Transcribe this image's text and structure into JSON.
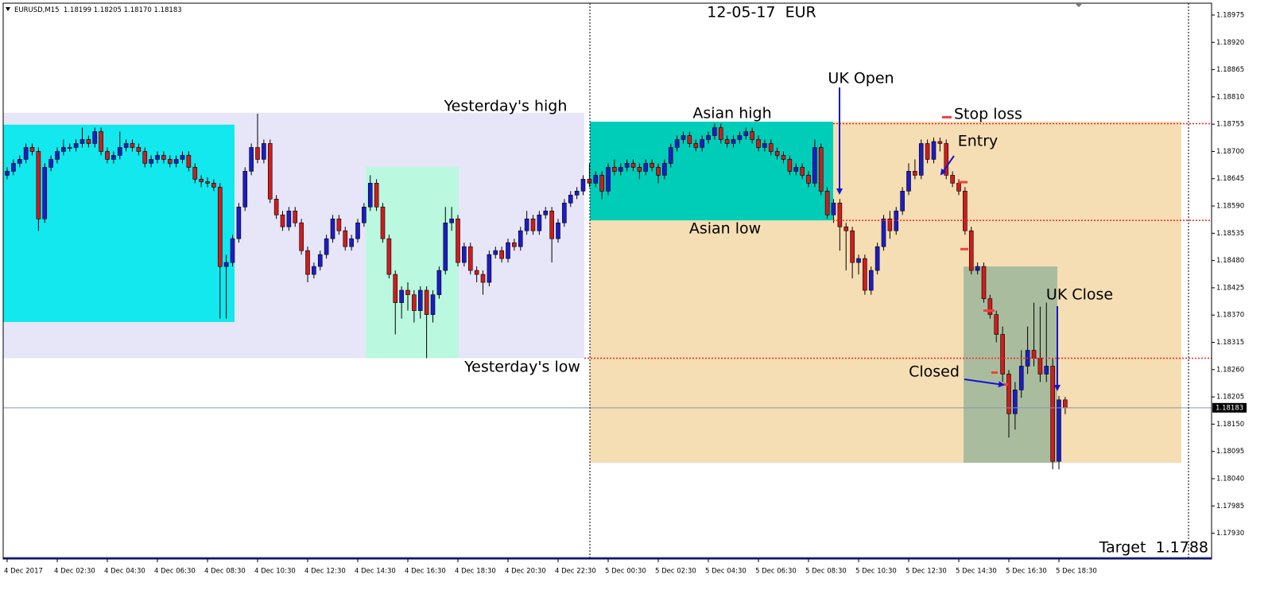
{
  "chart_data": {
    "type": "candlestick",
    "symbol": "EURUSD,M15",
    "last_bar_labels": {
      "open": "1.18199",
      "high": "1.18205",
      "low": "1.18170",
      "close": "1.18183"
    },
    "title": "12-05-17  EUR",
    "annotations": [
      "Yesterday's high",
      "Yesterday's low",
      "Asian high",
      "Asian low",
      "UK Open",
      "Stop loss",
      "Entry",
      "Closed",
      "UK Close"
    ],
    "target": {
      "value": 1.1788,
      "label": "Target  1.1788"
    },
    "up_color": "#1c1cc8",
    "down_color": "#d01c1c",
    "wick_color": "#000000",
    "ylim": [
      1.17878,
      1.18999
    ],
    "yticks": [
      1.18975,
      {
        "value": 1.1892,
        "label": "1.18920"
      },
      1.18865,
      {
        "value": 1.1881,
        "label": "1.18810"
      },
      1.18755,
      {
        "value": 1.187,
        "label": "1.18700"
      },
      1.18645,
      {
        "value": 1.1859,
        "label": "1.18590"
      },
      1.18535,
      {
        "value": 1.1848,
        "label": "1.18480"
      },
      1.18425,
      {
        "value": 1.1837,
        "label": "1.18370"
      },
      1.18315,
      {
        "value": 1.1826,
        "label": "1.18260"
      },
      1.18205,
      {
        "value": 1.1815,
        "label": "1.18150"
      },
      1.18095,
      {
        "value": 1.1804,
        "label": "1.18040"
      },
      1.17985,
      {
        "value": 1.1793,
        "label": "1.17930"
      }
    ],
    "zones": [
      {
        "high": 1.18778,
        "low": 1.18283,
        "color": "#e6e6f8"
      },
      {
        "high": 1.18754,
        "low": 1.18356,
        "color": "#12e8ee"
      },
      {
        "high": 1.18669,
        "low": 1.18283,
        "color": "#baf8e0"
      },
      {
        "high": 1.1876,
        "low": 1.18072,
        "color": "#f5deb3"
      },
      {
        "high": 1.1876,
        "low": 1.18561,
        "color": "#00cdb8"
      },
      {
        "high": 1.18468,
        "low": 1.18072,
        "color": "#a9bd9e"
      }
    ],
    "levels": [
      1.18756,
      1.18561,
      1.18283
    ],
    "level_color": "#ff2020",
    "orders": [
      1.18769,
      1.18638,
      1.18503,
      1.18379,
      1.18254,
      1.1823
    ],
    "order_color": "#f04040",
    "categories": [
      "4 Dec 2017",
      null,
      null,
      null,
      null,
      null,
      null,
      null,
      "4 Dec 02:30",
      null,
      null,
      null,
      null,
      null,
      null,
      null,
      "4 Dec 04:30",
      null,
      null,
      null,
      null,
      null,
      null,
      null,
      "4 Dec 06:30",
      null,
      null,
      null,
      null,
      null,
      null,
      null,
      "4 Dec 08:30",
      null,
      null,
      null,
      null,
      null,
      null,
      null,
      "4 Dec 10:30",
      null,
      null,
      null,
      null,
      null,
      null,
      null,
      "4 Dec 12:30",
      null,
      null,
      null,
      null,
      null,
      null,
      null,
      "4 Dec 14:30",
      null,
      null,
      null,
      null,
      null,
      null,
      null,
      "4 Dec 16:30",
      null,
      null,
      null,
      null,
      null,
      null,
      null,
      "4 Dec 18:30",
      null,
      null,
      null,
      null,
      null,
      null,
      null,
      "4 Dec 20:30",
      null,
      null,
      null,
      null,
      null,
      null,
      null,
      "4 Dec 22:30",
      null,
      null,
      null,
      null,
      null,
      null,
      null,
      "5 Dec 00:30",
      null,
      null,
      null,
      null,
      null,
      null,
      null,
      "5 Dec 02:30",
      null,
      null,
      null,
      null,
      null,
      null,
      null,
      "5 Dec 04:30",
      null,
      null,
      null,
      null,
      null,
      null,
      null,
      "5 Dec 06:30",
      null,
      null,
      null,
      null,
      null,
      null,
      null,
      "5 Dec 08:30",
      null,
      null,
      null,
      null,
      null,
      null,
      null,
      "5 Dec 10:30",
      null,
      null,
      null,
      null,
      null,
      null,
      null,
      "5 Dec 12:30",
      null,
      null,
      null,
      null,
      null,
      null,
      null,
      "5 Dec 14:30",
      null,
      null,
      null,
      null,
      null,
      null,
      null,
      "5 Dec 16:30",
      null,
      null,
      null,
      null,
      null,
      null,
      null,
      "5 Dec 18:30",
      null
    ],
    "open": [
      1.18652,
      1.1866,
      1.18676,
      1.18684,
      1.18708,
      1.187,
      1.18564,
      1.18668,
      1.18684,
      1.187,
      1.18708,
      1.18708,
      1.18716,
      1.18724,
      1.18716,
      1.1874,
      1.187,
      1.18684,
      1.18692,
      1.18708,
      1.18716,
      1.18708,
      1.187,
      1.18676,
      1.18684,
      1.18692,
      1.18684,
      1.18676,
      1.18684,
      1.18692,
      1.18668,
      1.18644,
      1.18639,
      1.18636,
      1.18628,
      1.18468,
      1.18476,
      1.18524,
      1.18588,
      1.1866,
      1.18708,
      1.18684,
      1.18716,
      1.18604,
      1.18572,
      1.18548,
      1.1858,
      1.18556,
      1.185,
      1.18452,
      1.18468,
      1.18492,
      1.18524,
      1.18564,
      1.1854,
      1.18508,
      1.18524,
      1.18556,
      1.18588,
      1.18636,
      1.18588,
      1.18524,
      1.18452,
      1.18395,
      1.1842,
      1.18411,
      1.18379,
      1.1842,
      1.18371,
      1.18411,
      1.1846,
      1.18556,
      1.18564,
      1.18476,
      1.18508,
      1.1846,
      1.18452,
      1.18436,
      1.18492,
      1.185,
      1.18484,
      1.18516,
      1.18508,
      1.1854,
      1.18564,
      1.1854,
      1.18572,
      1.1858,
      1.18524,
      1.18556,
      1.18596,
      1.18612,
      1.1862,
      1.18644,
      1.18636,
      1.18652,
      1.1862,
      1.18668,
      1.1866,
      1.18668,
      1.18676,
      1.18668,
      1.1866,
      1.18676,
      1.18668,
      1.18652,
      1.18676,
      1.18708,
      1.18724,
      1.18732,
      1.18716,
      1.18708,
      1.18724,
      1.18732,
      1.18748,
      1.18724,
      1.18716,
      1.18724,
      1.18732,
      1.1874,
      1.18724,
      1.18708,
      1.18716,
      1.187,
      1.18692,
      1.18684,
      1.1866,
      1.18668,
      1.18652,
      1.18636,
      1.18708,
      1.1862,
      1.18572,
      1.18596,
      1.18548,
      1.1854,
      1.18476,
      1.18484,
      1.1842,
      1.1846,
      1.18508,
      1.18564,
      1.1854,
      1.1858,
      1.1862,
      1.1866,
      1.18652,
      1.18716,
      1.18684,
      1.1872,
      1.18716,
      1.18652,
      1.18636,
      1.1862,
      1.1854,
      1.1846,
      1.18468,
      1.18403,
      1.18371,
      1.18331,
      1.18251,
      1.18171,
      1.18219,
      1.18267,
      1.18299,
      1.18283,
      1.18251,
      1.18267,
      1.18075,
      1.18199
    ],
    "high": [
      1.18668,
      1.18684,
      1.18692,
      1.18716,
      1.18716,
      1.18708,
      1.18676,
      1.18692,
      1.18708,
      1.18724,
      1.18716,
      1.18724,
      1.18748,
      1.18732,
      1.18748,
      1.18748,
      1.18708,
      1.187,
      1.1874,
      1.18724,
      1.18724,
      1.18716,
      1.18708,
      1.18692,
      1.187,
      1.187,
      1.18692,
      1.18692,
      1.187,
      1.187,
      1.18676,
      1.18652,
      1.18648,
      1.18644,
      1.18636,
      1.18492,
      1.18532,
      1.18596,
      1.18668,
      1.18716,
      1.18776,
      1.18724,
      1.18724,
      1.18612,
      1.1858,
      1.18588,
      1.18588,
      1.18564,
      1.18508,
      1.18476,
      1.185,
      1.18532,
      1.18572,
      1.18572,
      1.18548,
      1.18532,
      1.18564,
      1.18596,
      1.18652,
      1.18644,
      1.18596,
      1.18532,
      1.1846,
      1.18428,
      1.18436,
      1.1842,
      1.18428,
      1.18428,
      1.1842,
      1.18468,
      1.18588,
      1.18588,
      1.18572,
      1.18516,
      1.18516,
      1.18468,
      1.1846,
      1.185,
      1.18508,
      1.18508,
      1.18524,
      1.18524,
      1.18548,
      1.1858,
      1.18572,
      1.1858,
      1.18588,
      1.18588,
      1.18564,
      1.18604,
      1.1862,
      1.18628,
      1.18652,
      1.18676,
      1.1866,
      1.1866,
      1.18676,
      1.18684,
      1.18676,
      1.18684,
      1.18684,
      1.18676,
      1.18684,
      1.18684,
      1.18676,
      1.18684,
      1.18716,
      1.18732,
      1.1874,
      1.1874,
      1.18724,
      1.18732,
      1.1874,
      1.18756,
      1.18756,
      1.18732,
      1.18732,
      1.1874,
      1.18748,
      1.18748,
      1.18732,
      1.18724,
      1.18724,
      1.18708,
      1.187,
      1.18692,
      1.18676,
      1.18676,
      1.1866,
      1.18724,
      1.18716,
      1.18628,
      1.18604,
      1.18604,
      1.18556,
      1.18548,
      1.18492,
      1.18492,
      1.18468,
      1.18516,
      1.18572,
      1.1858,
      1.18588,
      1.18628,
      1.18676,
      1.18684,
      1.18724,
      1.18724,
      1.18728,
      1.18728,
      1.18724,
      1.1866,
      1.18644,
      1.18628,
      1.18548,
      1.18476,
      1.18476,
      1.18411,
      1.18379,
      1.18347,
      1.18259,
      1.18235,
      1.18299,
      1.18347,
      1.18395,
      1.18387,
      1.18395,
      1.18283,
      1.18207,
      1.18205
    ],
    "low": [
      1.18644,
      1.18652,
      1.18668,
      1.18676,
      1.18692,
      1.1854,
      1.18556,
      1.1866,
      1.18676,
      1.18692,
      1.187,
      1.187,
      1.18708,
      1.18708,
      1.18708,
      1.18692,
      1.18676,
      1.18676,
      1.18684,
      1.187,
      1.187,
      1.18692,
      1.18668,
      1.18668,
      1.18676,
      1.18676,
      1.18668,
      1.18668,
      1.18676,
      1.1866,
      1.18636,
      1.18628,
      1.18628,
      1.1862,
      1.18363,
      1.18363,
      1.18468,
      1.18516,
      1.1858,
      1.18652,
      1.18676,
      1.18676,
      1.18596,
      1.18564,
      1.1854,
      1.1854,
      1.18548,
      1.18492,
      1.18436,
      1.18444,
      1.1846,
      1.18484,
      1.18516,
      1.18532,
      1.185,
      1.185,
      1.18516,
      1.18548,
      1.1858,
      1.1858,
      1.18516,
      1.18444,
      1.18331,
      1.18363,
      1.18379,
      1.18355,
      1.18363,
      1.18283,
      1.18355,
      1.18403,
      1.18452,
      1.1854,
      1.18468,
      1.18468,
      1.18452,
      1.18436,
      1.18411,
      1.18428,
      1.18484,
      1.18476,
      1.18476,
      1.185,
      1.185,
      1.18532,
      1.18532,
      1.18532,
      1.18564,
      1.18476,
      1.18516,
      1.18548,
      1.18588,
      1.18604,
      1.18612,
      1.18628,
      1.18628,
      1.18604,
      1.18612,
      1.18652,
      1.18652,
      1.1866,
      1.1866,
      1.18644,
      1.18652,
      1.1866,
      1.18636,
      1.18644,
      1.18668,
      1.187,
      1.18716,
      1.18708,
      1.187,
      1.187,
      1.18716,
      1.18724,
      1.18716,
      1.18708,
      1.18708,
      1.18716,
      1.18724,
      1.18716,
      1.187,
      1.187,
      1.18692,
      1.18684,
      1.18676,
      1.18652,
      1.18652,
      1.18644,
      1.18628,
      1.18628,
      1.18612,
      1.18564,
      1.18556,
      1.185,
      1.1846,
      1.18444,
      1.18452,
      1.18411,
      1.18411,
      1.18452,
      1.185,
      1.18524,
      1.18532,
      1.18572,
      1.18612,
      1.18644,
      1.18644,
      1.18676,
      1.18676,
      1.187,
      1.18644,
      1.18628,
      1.18612,
      1.18532,
      1.18452,
      1.18452,
      1.18395,
      1.18363,
      1.18315,
      1.18235,
      1.18123,
      1.18139,
      1.18203,
      1.18251,
      1.18267,
      1.18235,
      1.18235,
      1.18059,
      1.18059,
      1.1817
    ],
    "close": [
      1.1866,
      1.18676,
      1.18684,
      1.18708,
      1.187,
      1.18564,
      1.18668,
      1.18684,
      1.187,
      1.18708,
      1.18708,
      1.18716,
      1.18724,
      1.18716,
      1.1874,
      1.187,
      1.18684,
      1.18692,
      1.18708,
      1.18716,
      1.18708,
      1.187,
      1.18676,
      1.18684,
      1.18692,
      1.18684,
      1.18676,
      1.18684,
      1.18692,
      1.18668,
      1.18644,
      1.18639,
      1.18636,
      1.18628,
      1.18468,
      1.18476,
      1.18524,
      1.18588,
      1.1866,
      1.18708,
      1.18684,
      1.18716,
      1.18604,
      1.18572,
      1.18548,
      1.1858,
      1.18556,
      1.185,
      1.18452,
      1.18468,
      1.18492,
      1.18524,
      1.18564,
      1.1854,
      1.18508,
      1.18524,
      1.18556,
      1.18588,
      1.18636,
      1.18588,
      1.18524,
      1.18452,
      1.18395,
      1.1842,
      1.18411,
      1.18379,
      1.1842,
      1.18371,
      1.18411,
      1.1846,
      1.18556,
      1.18564,
      1.18476,
      1.18508,
      1.1846,
      1.18452,
      1.18436,
      1.18492,
      1.185,
      1.18484,
      1.18516,
      1.18508,
      1.1854,
      1.18564,
      1.1854,
      1.18572,
      1.1858,
      1.18524,
      1.18556,
      1.18596,
      1.18612,
      1.1862,
      1.18644,
      1.18636,
      1.18652,
      1.1862,
      1.18668,
      1.1866,
      1.18668,
      1.18676,
      1.18668,
      1.1866,
      1.18676,
      1.18668,
      1.18652,
      1.18676,
      1.18708,
      1.18724,
      1.18732,
      1.18716,
      1.18708,
      1.18724,
      1.18732,
      1.18748,
      1.18724,
      1.18716,
      1.18724,
      1.18732,
      1.1874,
      1.18724,
      1.18708,
      1.18716,
      1.187,
      1.18692,
      1.18684,
      1.1866,
      1.18668,
      1.18652,
      1.18636,
      1.18708,
      1.1862,
      1.18572,
      1.18596,
      1.18548,
      1.1854,
      1.18476,
      1.18484,
      1.1842,
      1.1846,
      1.18508,
      1.18564,
      1.1854,
      1.1858,
      1.1862,
      1.1866,
      1.18652,
      1.18716,
      1.18684,
      1.1872,
      1.18716,
      1.18652,
      1.18636,
      1.1862,
      1.1854,
      1.1846,
      1.18468,
      1.18403,
      1.18371,
      1.18331,
      1.18251,
      1.18171,
      1.18219,
      1.18267,
      1.18299,
      1.18283,
      1.18251,
      1.18267,
      1.18075,
      1.18199,
      1.18183
    ]
  }
}
